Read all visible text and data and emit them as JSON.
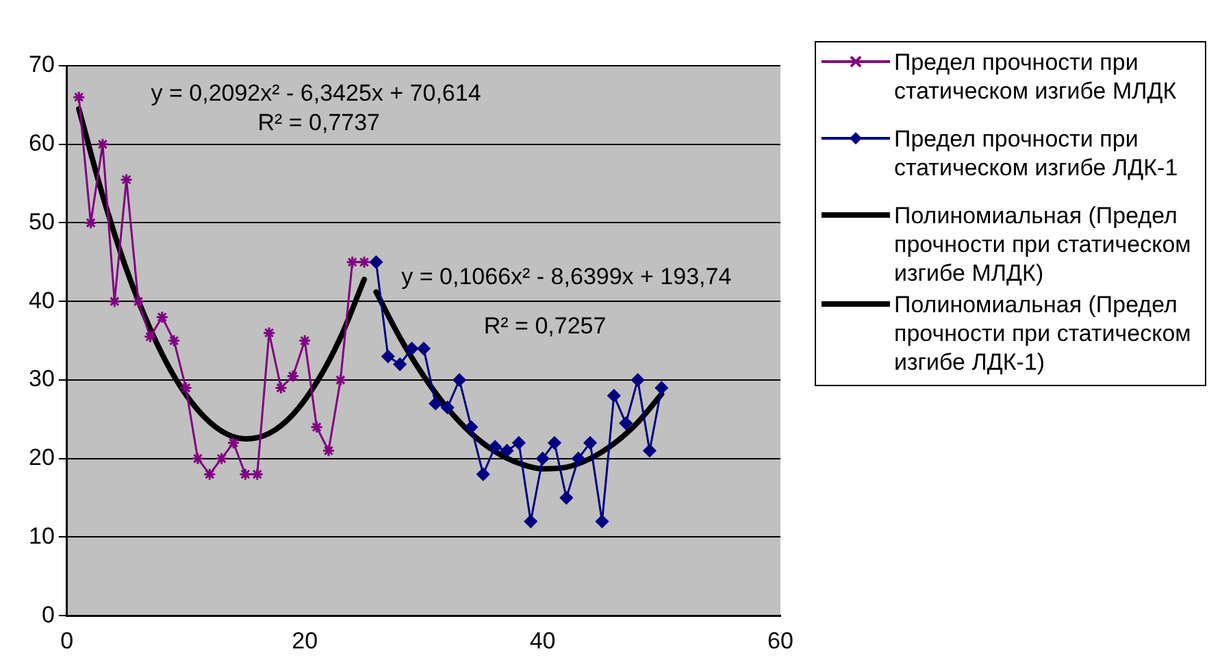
{
  "chart_data": {
    "type": "line",
    "xlim": [
      0,
      60
    ],
    "xticks": [
      0,
      20,
      40,
      60
    ],
    "ylim": [
      0,
      70
    ],
    "yticks": [
      0,
      10,
      20,
      30,
      40,
      50,
      60,
      70
    ],
    "grid": "y",
    "legend": "right",
    "series": [
      {
        "name": "Предел прочности при статическом изгибе МЛДК",
        "color": "#800080",
        "marker": "cross",
        "x": [
          1,
          2,
          3,
          4,
          5,
          6,
          7,
          8,
          9,
          10,
          11,
          12,
          13,
          14,
          15,
          16,
          17,
          18,
          19,
          20,
          21,
          22,
          23,
          24,
          25
        ],
        "values": [
          66,
          50,
          60,
          40,
          55.5,
          40,
          35.5,
          38,
          35,
          29,
          20,
          18,
          20,
          22,
          18,
          18,
          36,
          29,
          30.5,
          35,
          24,
          21,
          30,
          45,
          45
        ]
      },
      {
        "name": "Предел прочности при статическом изгибе ЛДК-1",
        "color": "#000080",
        "marker": "diamond",
        "x": [
          26,
          27,
          28,
          29,
          30,
          31,
          32,
          33,
          34,
          35,
          36,
          37,
          38,
          39,
          40,
          41,
          42,
          43,
          44,
          45,
          46,
          47,
          48,
          49,
          50
        ],
        "values": [
          45,
          33,
          32,
          34,
          34,
          27,
          26.5,
          30,
          24,
          18,
          21.5,
          21,
          22,
          12,
          20,
          22,
          15,
          20,
          22,
          12,
          28,
          24.5,
          30,
          21,
          29
        ]
      },
      {
        "name": "Полиномиальная (Предел прочности при статическом изгибе МЛДК)",
        "color": "#000000",
        "marker": "none",
        "x": [
          1,
          3,
          5,
          7,
          9,
          11,
          13,
          15,
          17,
          19,
          21,
          23,
          25
        ],
        "values": [
          64.5,
          53.5,
          44.1,
          36.5,
          30.5,
          26.2,
          23.5,
          22.5,
          23.2,
          25.6,
          29.7,
          35.4,
          42.8
        ]
      },
      {
        "name": "Полиномиальная (Предел прочности при статическом изгибе ЛДК-1)",
        "color": "#000000",
        "marker": "none",
        "x": [
          26,
          28,
          30,
          32,
          34,
          36,
          38,
          40,
          42,
          44,
          46,
          48,
          50
        ],
        "values": [
          41.2,
          35.4,
          30.5,
          26.4,
          23.2,
          20.9,
          19.4,
          18.7,
          18.9,
          20,
          21.9,
          24.6,
          28.2
        ]
      }
    ],
    "annotations": [
      "y = 0,2092x² - 6,3425x + 70,614",
      "R² = 0,7737",
      "y = 0,1066x² - 8,6399x + 193,74",
      "R² = 0,7257"
    ]
  }
}
